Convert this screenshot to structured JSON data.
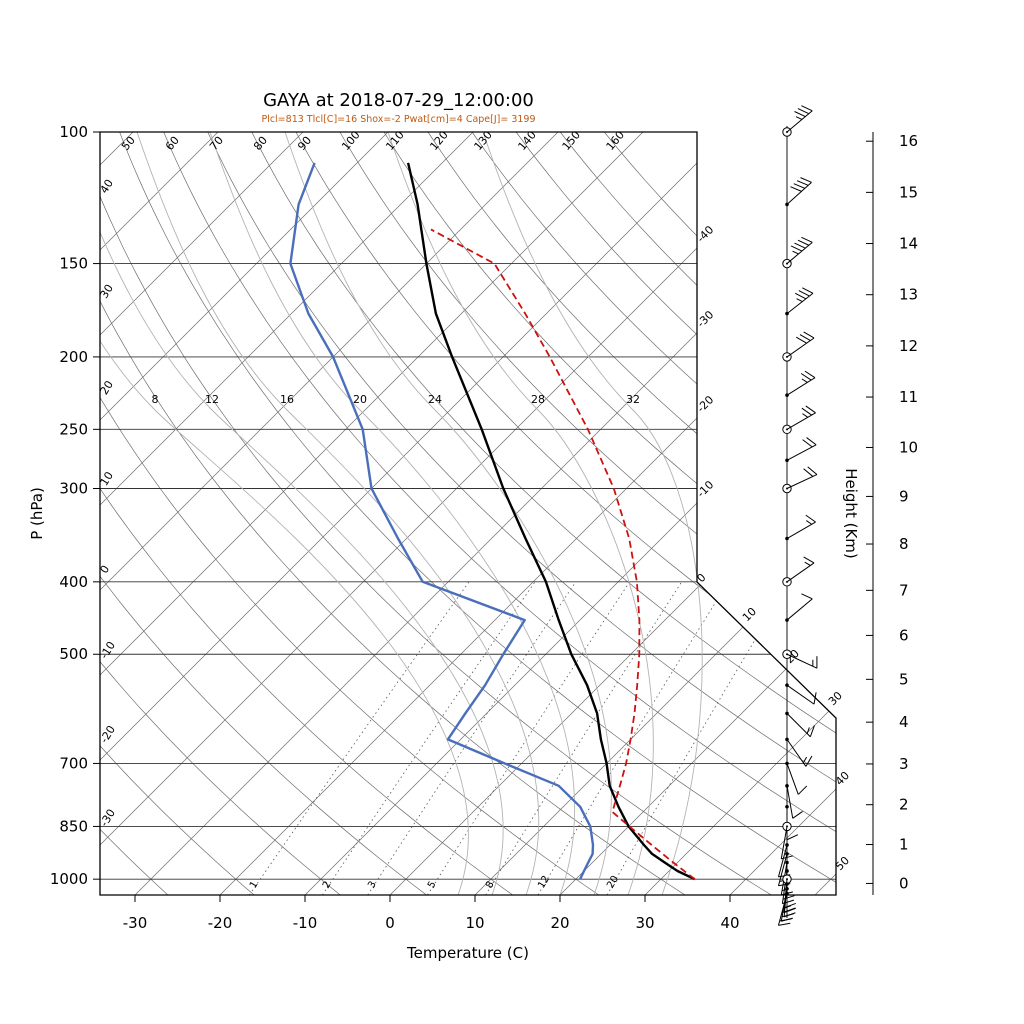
{
  "title": "GAYA at 2018-07-29_12:00:00",
  "subtitle": "Plcl=813 Tlcl[C]=16 Shox=-2 Pwat[cm]=4 Cape[J]= 3199",
  "diagnostics": {
    "Plcl": 813,
    "Tlcl_C": 16,
    "Shox": -2,
    "Pwat_cm": 4,
    "Cape_J": 3199
  },
  "axes": {
    "pressure_label": "P (hPa)",
    "temperature_label": "Temperature (C)",
    "height_label": "Height (Km)",
    "pressure_ticks": [
      100,
      150,
      200,
      250,
      300,
      400,
      500,
      700,
      850,
      1000
    ],
    "temperature_ticks": [
      -30,
      -20,
      -10,
      0,
      10,
      20,
      30,
      40
    ],
    "height_ticks": [
      0,
      1,
      2,
      3,
      4,
      5,
      6,
      7,
      8,
      9,
      10,
      11,
      12,
      13,
      14,
      15,
      16
    ],
    "pressure_range_hpa": [
      100,
      1050
    ],
    "temperature_axis_range_c": [
      -34,
      52
    ]
  },
  "colors": {
    "temperature": "#000000",
    "dewpoint": "#4a6fba",
    "parcel": "#cc1111",
    "subtitle": "#c05a11",
    "grid": "#6e6e6e",
    "moist": "#b3b3b3"
  },
  "chart_data": {
    "type": "line",
    "variant": "skew-t-log-p-sounding",
    "station": "GAYA",
    "datetime": "2018-07-29_12:00:00",
    "grid": {
      "isotherms_c": [
        -120,
        -110,
        -100,
        -90,
        -80,
        -70,
        -60,
        -50,
        -40,
        -30,
        -20,
        -10,
        0,
        10,
        20,
        30,
        40,
        50
      ],
      "dry_adiabats_c": [
        -30,
        -20,
        -10,
        0,
        10,
        20,
        30,
        40,
        50,
        60,
        70,
        80,
        90,
        100,
        110,
        120,
        130,
        140,
        150,
        160
      ],
      "moist_adiabats_c": [
        8,
        12,
        16,
        20,
        24,
        28,
        32
      ],
      "mixing_ratio_gkg": [
        1,
        2,
        3,
        5,
        8,
        12,
        20
      ]
    },
    "layout": {
      "moist_label_x": [
        155,
        212,
        287,
        360,
        435,
        538,
        633
      ],
      "skew_deg": 45,
      "legend": "none",
      "grid_on": true
    },
    "pressure_hpa": [
      1000,
      975,
      950,
      925,
      900,
      850,
      800,
      750,
      700,
      650,
      600,
      550,
      500,
      450,
      400,
      350,
      300,
      250,
      200,
      175,
      150,
      125,
      110
    ],
    "temperature_c": [
      34,
      31,
      28.5,
      26,
      24,
      20,
      16.5,
      13,
      10,
      6.5,
      3,
      -1.5,
      -7,
      -12.5,
      -18.5,
      -26,
      -34.5,
      -44,
      -56,
      -63,
      -70,
      -78,
      -84
    ],
    "dewpoint_c": [
      20.5,
      20,
      19.5,
      19,
      18,
      15.5,
      12,
      7,
      -2,
      -11.5,
      -12.5,
      -13.5,
      -15,
      -16.5,
      -33,
      -41,
      -50,
      -58,
      -70,
      -78,
      -86,
      -92,
      -95
    ],
    "parcel": {
      "pressure_hpa": [
        1000,
        950,
        900,
        850,
        813,
        750,
        700,
        650,
        600,
        550,
        500,
        450,
        400,
        350,
        300,
        250,
        200,
        175,
        150,
        135
      ],
      "temperature_c": [
        34,
        29.5,
        24.9,
        20.1,
        16.4,
        14.2,
        12.3,
        10,
        7.4,
        4.4,
        1,
        -3,
        -7.8,
        -13.8,
        -21.5,
        -31.5,
        -44.5,
        -52.5,
        -62,
        -73.5
      ]
    },
    "wind_levels": [
      {
        "p": 100,
        "speed_kt": 35,
        "dir_deg": 50,
        "marker": "circle"
      },
      {
        "p": 125,
        "speed_kt": 40,
        "dir_deg": 48,
        "marker": "dot"
      },
      {
        "p": 150,
        "speed_kt": 45,
        "dir_deg": 50,
        "marker": "circle"
      },
      {
        "p": 175,
        "speed_kt": 35,
        "dir_deg": 52,
        "marker": "dot"
      },
      {
        "p": 200,
        "speed_kt": 30,
        "dir_deg": 55,
        "marker": "circle"
      },
      {
        "p": 225,
        "speed_kt": 25,
        "dir_deg": 58,
        "marker": "dot"
      },
      {
        "p": 250,
        "speed_kt": 25,
        "dir_deg": 60,
        "marker": "circle"
      },
      {
        "p": 275,
        "speed_kt": 20,
        "dir_deg": 62,
        "marker": "dot"
      },
      {
        "p": 300,
        "speed_kt": 20,
        "dir_deg": 65,
        "marker": "circle"
      },
      {
        "p": 350,
        "speed_kt": 15,
        "dir_deg": 60,
        "marker": "dot"
      },
      {
        "p": 400,
        "speed_kt": 15,
        "dir_deg": 55,
        "marker": "circle"
      },
      {
        "p": 450,
        "speed_kt": 10,
        "dir_deg": 50,
        "marker": "dot"
      },
      {
        "p": 500,
        "speed_kt": 15,
        "dir_deg": 115,
        "marker": "circle"
      },
      {
        "p": 550,
        "speed_kt": 10,
        "dir_deg": 125,
        "marker": "dot"
      },
      {
        "p": 600,
        "speed_kt": 15,
        "dir_deg": 135,
        "marker": "dot"
      },
      {
        "p": 650,
        "speed_kt": 15,
        "dir_deg": 145,
        "marker": "dot"
      },
      {
        "p": 700,
        "speed_kt": 10,
        "dir_deg": 160,
        "marker": "dot"
      },
      {
        "p": 750,
        "speed_kt": 10,
        "dir_deg": 170,
        "marker": "dot"
      },
      {
        "p": 800,
        "speed_kt": 10,
        "dir_deg": 180,
        "marker": "dot"
      },
      {
        "p": 850,
        "speed_kt": 10,
        "dir_deg": 190,
        "marker": "circle"
      },
      {
        "p": 900,
        "speed_kt": 10,
        "dir_deg": 195,
        "marker": "dot"
      },
      {
        "p": 925,
        "speed_kt": 15,
        "dir_deg": 195,
        "marker": "dot"
      },
      {
        "p": 950,
        "speed_kt": 15,
        "dir_deg": 190,
        "marker": "dot"
      },
      {
        "p": 975,
        "speed_kt": 20,
        "dir_deg": 188,
        "marker": "dot"
      },
      {
        "p": 1000,
        "speed_kt": 20,
        "dir_deg": 185,
        "marker": "circle"
      },
      {
        "p": 1015,
        "speed_kt": 25,
        "dir_deg": 185,
        "marker": "dot"
      },
      {
        "p": 1030,
        "speed_kt": 25,
        "dir_deg": 190,
        "marker": "dot"
      },
      {
        "p": 1045,
        "speed_kt": 20,
        "dir_deg": 195,
        "marker": "dot"
      }
    ]
  }
}
